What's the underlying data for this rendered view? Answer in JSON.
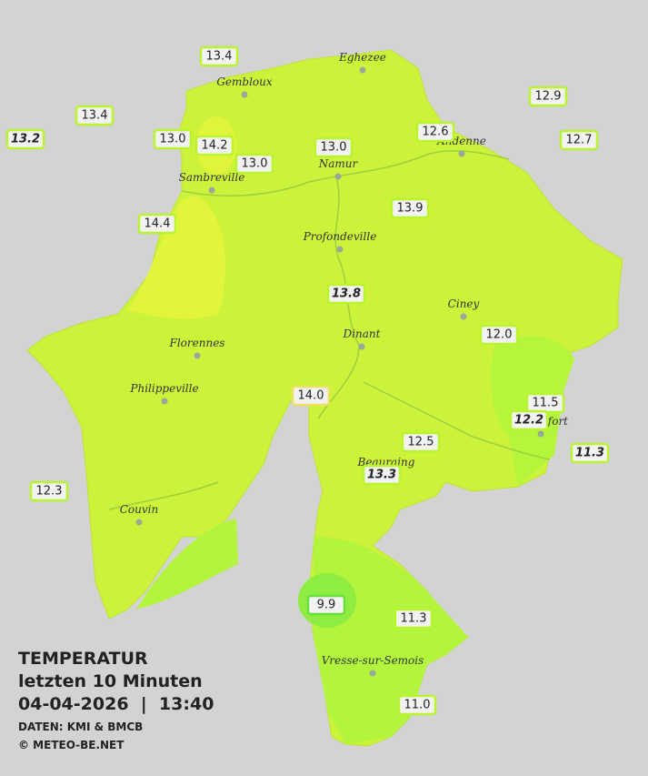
{
  "map": {
    "title": "TEMPERATUR",
    "subtitle": "letzten 10 Minuten",
    "timestamp": "04-04-2026  |  13:40",
    "source": "DATEN: KMI & BMCB",
    "copyright": "© METEO-BE.NET",
    "cities": [
      "Eghezee",
      "Gembloux",
      "Andenne",
      "Sambreville",
      "Namur",
      "Profondeville",
      "Ciney",
      "Florennes",
      "Dinant",
      "Philippeville",
      "Rochefort",
      "Beauraing",
      "Couvin",
      "Vresse-sur-Semois"
    ],
    "stations": [
      {
        "value": "13.4",
        "italic": false
      },
      {
        "value": "13.4",
        "italic": false
      },
      {
        "value": "13.2",
        "italic": true
      },
      {
        "value": "13.0",
        "italic": false
      },
      {
        "value": "14.2",
        "italic": false
      },
      {
        "value": "13.0",
        "italic": false
      },
      {
        "value": "13.0",
        "italic": false
      },
      {
        "value": "12.6",
        "italic": false
      },
      {
        "value": "12.9",
        "italic": false
      },
      {
        "value": "12.7",
        "italic": false
      },
      {
        "value": "14.4",
        "italic": false
      },
      {
        "value": "13.9",
        "italic": false
      },
      {
        "value": "13.8",
        "italic": true
      },
      {
        "value": "12.0",
        "italic": false
      },
      {
        "value": "14.0",
        "italic": false
      },
      {
        "value": "11.5",
        "italic": false
      },
      {
        "value": "12.2",
        "italic": true
      },
      {
        "value": "11.3",
        "italic": true
      },
      {
        "value": "12.5",
        "italic": false
      },
      {
        "value": "13.3",
        "italic": true
      },
      {
        "value": "12.3",
        "italic": false
      },
      {
        "value": "9.9",
        "italic": false
      },
      {
        "value": "11.3",
        "italic": false
      },
      {
        "value": "11.0",
        "italic": false
      }
    ]
  }
}
